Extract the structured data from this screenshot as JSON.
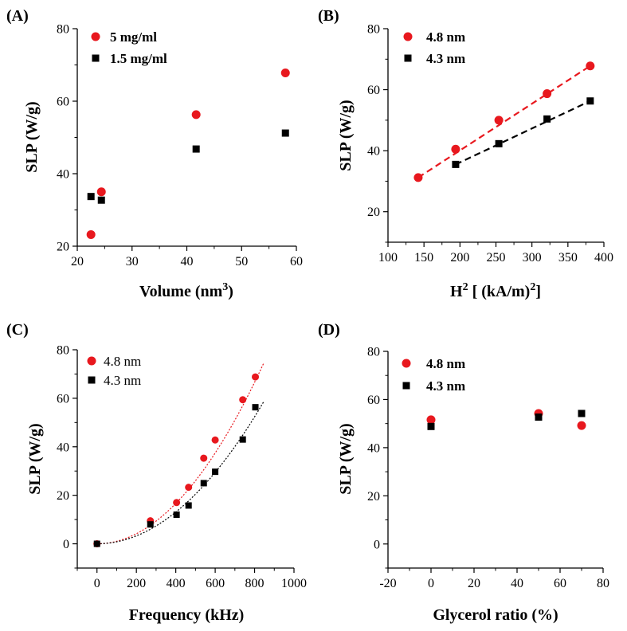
{
  "chart_data": [
    {
      "panel": "(A)",
      "type": "scatter",
      "xlabel": "Volume (nm",
      "xlabel_sup": "3",
      "xlabel_tail": ")",
      "ylabel": "SLP (W/g)",
      "xlim": [
        20,
        60
      ],
      "ylim": [
        20,
        80
      ],
      "xticks": [
        20,
        30,
        40,
        50,
        60
      ],
      "yticks": [
        20,
        40,
        60,
        80
      ],
      "legend_style": "bold",
      "series": [
        {
          "name": "5 mg/ml",
          "marker": "circle",
          "color": "#e8181e",
          "x": [
            22.5,
            24.4,
            41.7,
            58.0
          ],
          "y": [
            23.2,
            35.0,
            56.3,
            67.8
          ]
        },
        {
          "name": "1.5 mg/ml",
          "marker": "square",
          "color": "#000000",
          "x": [
            22.5,
            24.4,
            41.7,
            58.0
          ],
          "y": [
            33.7,
            32.7,
            46.8,
            51.2
          ]
        }
      ]
    },
    {
      "panel": "(B)",
      "type": "scatter",
      "xlabel": "H",
      "xlabel_sup": "2",
      "xlabel_tail": " [ (kA/m)",
      "xlabel_sup2": "2",
      "xlabel_tail2": "]",
      "ylabel": "SLP (W/g)",
      "xlim": [
        100,
        400
      ],
      "ylim": [
        10,
        80
      ],
      "xticks": [
        100,
        150,
        200,
        250,
        300,
        350,
        400
      ],
      "yticks": [
        20,
        40,
        60,
        80
      ],
      "legend_style": "bold",
      "series": [
        {
          "name": "4.8 nm",
          "marker": "circle",
          "color": "#e8181e",
          "x": [
            142,
            194,
            254,
            321,
            381
          ],
          "y": [
            31.2,
            40.5,
            50.0,
            58.7,
            67.8
          ],
          "fit": {
            "kind": "linear",
            "x0": 142,
            "x1": 381,
            "y0": 31.2,
            "y1": 67.8,
            "dash": "dashed"
          }
        },
        {
          "name": "4.3 nm",
          "marker": "square",
          "color": "#000000",
          "x": [
            194,
            254,
            321,
            381
          ],
          "y": [
            35.5,
            42.3,
            50.4,
            56.3
          ],
          "fit": {
            "kind": "linear",
            "x0": 194,
            "x1": 381,
            "y0": 35.5,
            "y1": 56.3,
            "dash": "dashed"
          }
        }
      ]
    },
    {
      "panel": "(C)",
      "type": "scatter",
      "xlabel": "Frequency (kHz)",
      "ylabel": "SLP (W/g)",
      "xlim": [
        -100,
        1000
      ],
      "ylim": [
        -10,
        80
      ],
      "xticks": [
        0,
        200,
        400,
        600,
        800,
        1000
      ],
      "yticks": [
        0,
        20,
        40,
        60,
        80
      ],
      "legend_style": "plain",
      "series": [
        {
          "name": "4.8 nm",
          "marker": "circle",
          "color": "#e8181e",
          "x": [
            0,
            271,
            404,
            465,
            542,
            600,
            740,
            804
          ],
          "y": [
            0,
            9.5,
            17.0,
            23.3,
            35.3,
            42.8,
            59.4,
            68.8
          ],
          "fit": {
            "kind": "power",
            "coef": 0.000104,
            "exp": 2,
            "x0": 0,
            "x1": 845,
            "dash": "dotted"
          }
        },
        {
          "name": "4.3 nm",
          "marker": "square",
          "color": "#000000",
          "x": [
            0,
            271,
            404,
            465,
            542,
            600,
            740,
            804
          ],
          "y": [
            0,
            8.0,
            12.0,
            15.8,
            25.0,
            29.7,
            43.0,
            56.3
          ],
          "fit": {
            "kind": "power",
            "coef": 8.18e-05,
            "exp": 2,
            "x0": 0,
            "x1": 845,
            "dash": "dotted"
          }
        }
      ]
    },
    {
      "panel": "(D)",
      "type": "scatter",
      "xlabel": "Glycerol ratio (%)",
      "ylabel": "SLP (W/g)",
      "xlim": [
        -20,
        80
      ],
      "ylim": [
        -10,
        80
      ],
      "xticks": [
        -20,
        0,
        20,
        40,
        60,
        80
      ],
      "yticks": [
        0,
        20,
        40,
        60,
        80
      ],
      "legend_style": "bold",
      "series": [
        {
          "name": "4.8 nm",
          "marker": "circle",
          "color": "#e8181e",
          "x": [
            0,
            50,
            70
          ],
          "y": [
            51.6,
            54.2,
            49.2
          ]
        },
        {
          "name": "4.3 nm",
          "marker": "square",
          "color": "#000000",
          "x": [
            0,
            50,
            70
          ],
          "y": [
            48.8,
            52.7,
            54.2
          ]
        }
      ]
    }
  ]
}
